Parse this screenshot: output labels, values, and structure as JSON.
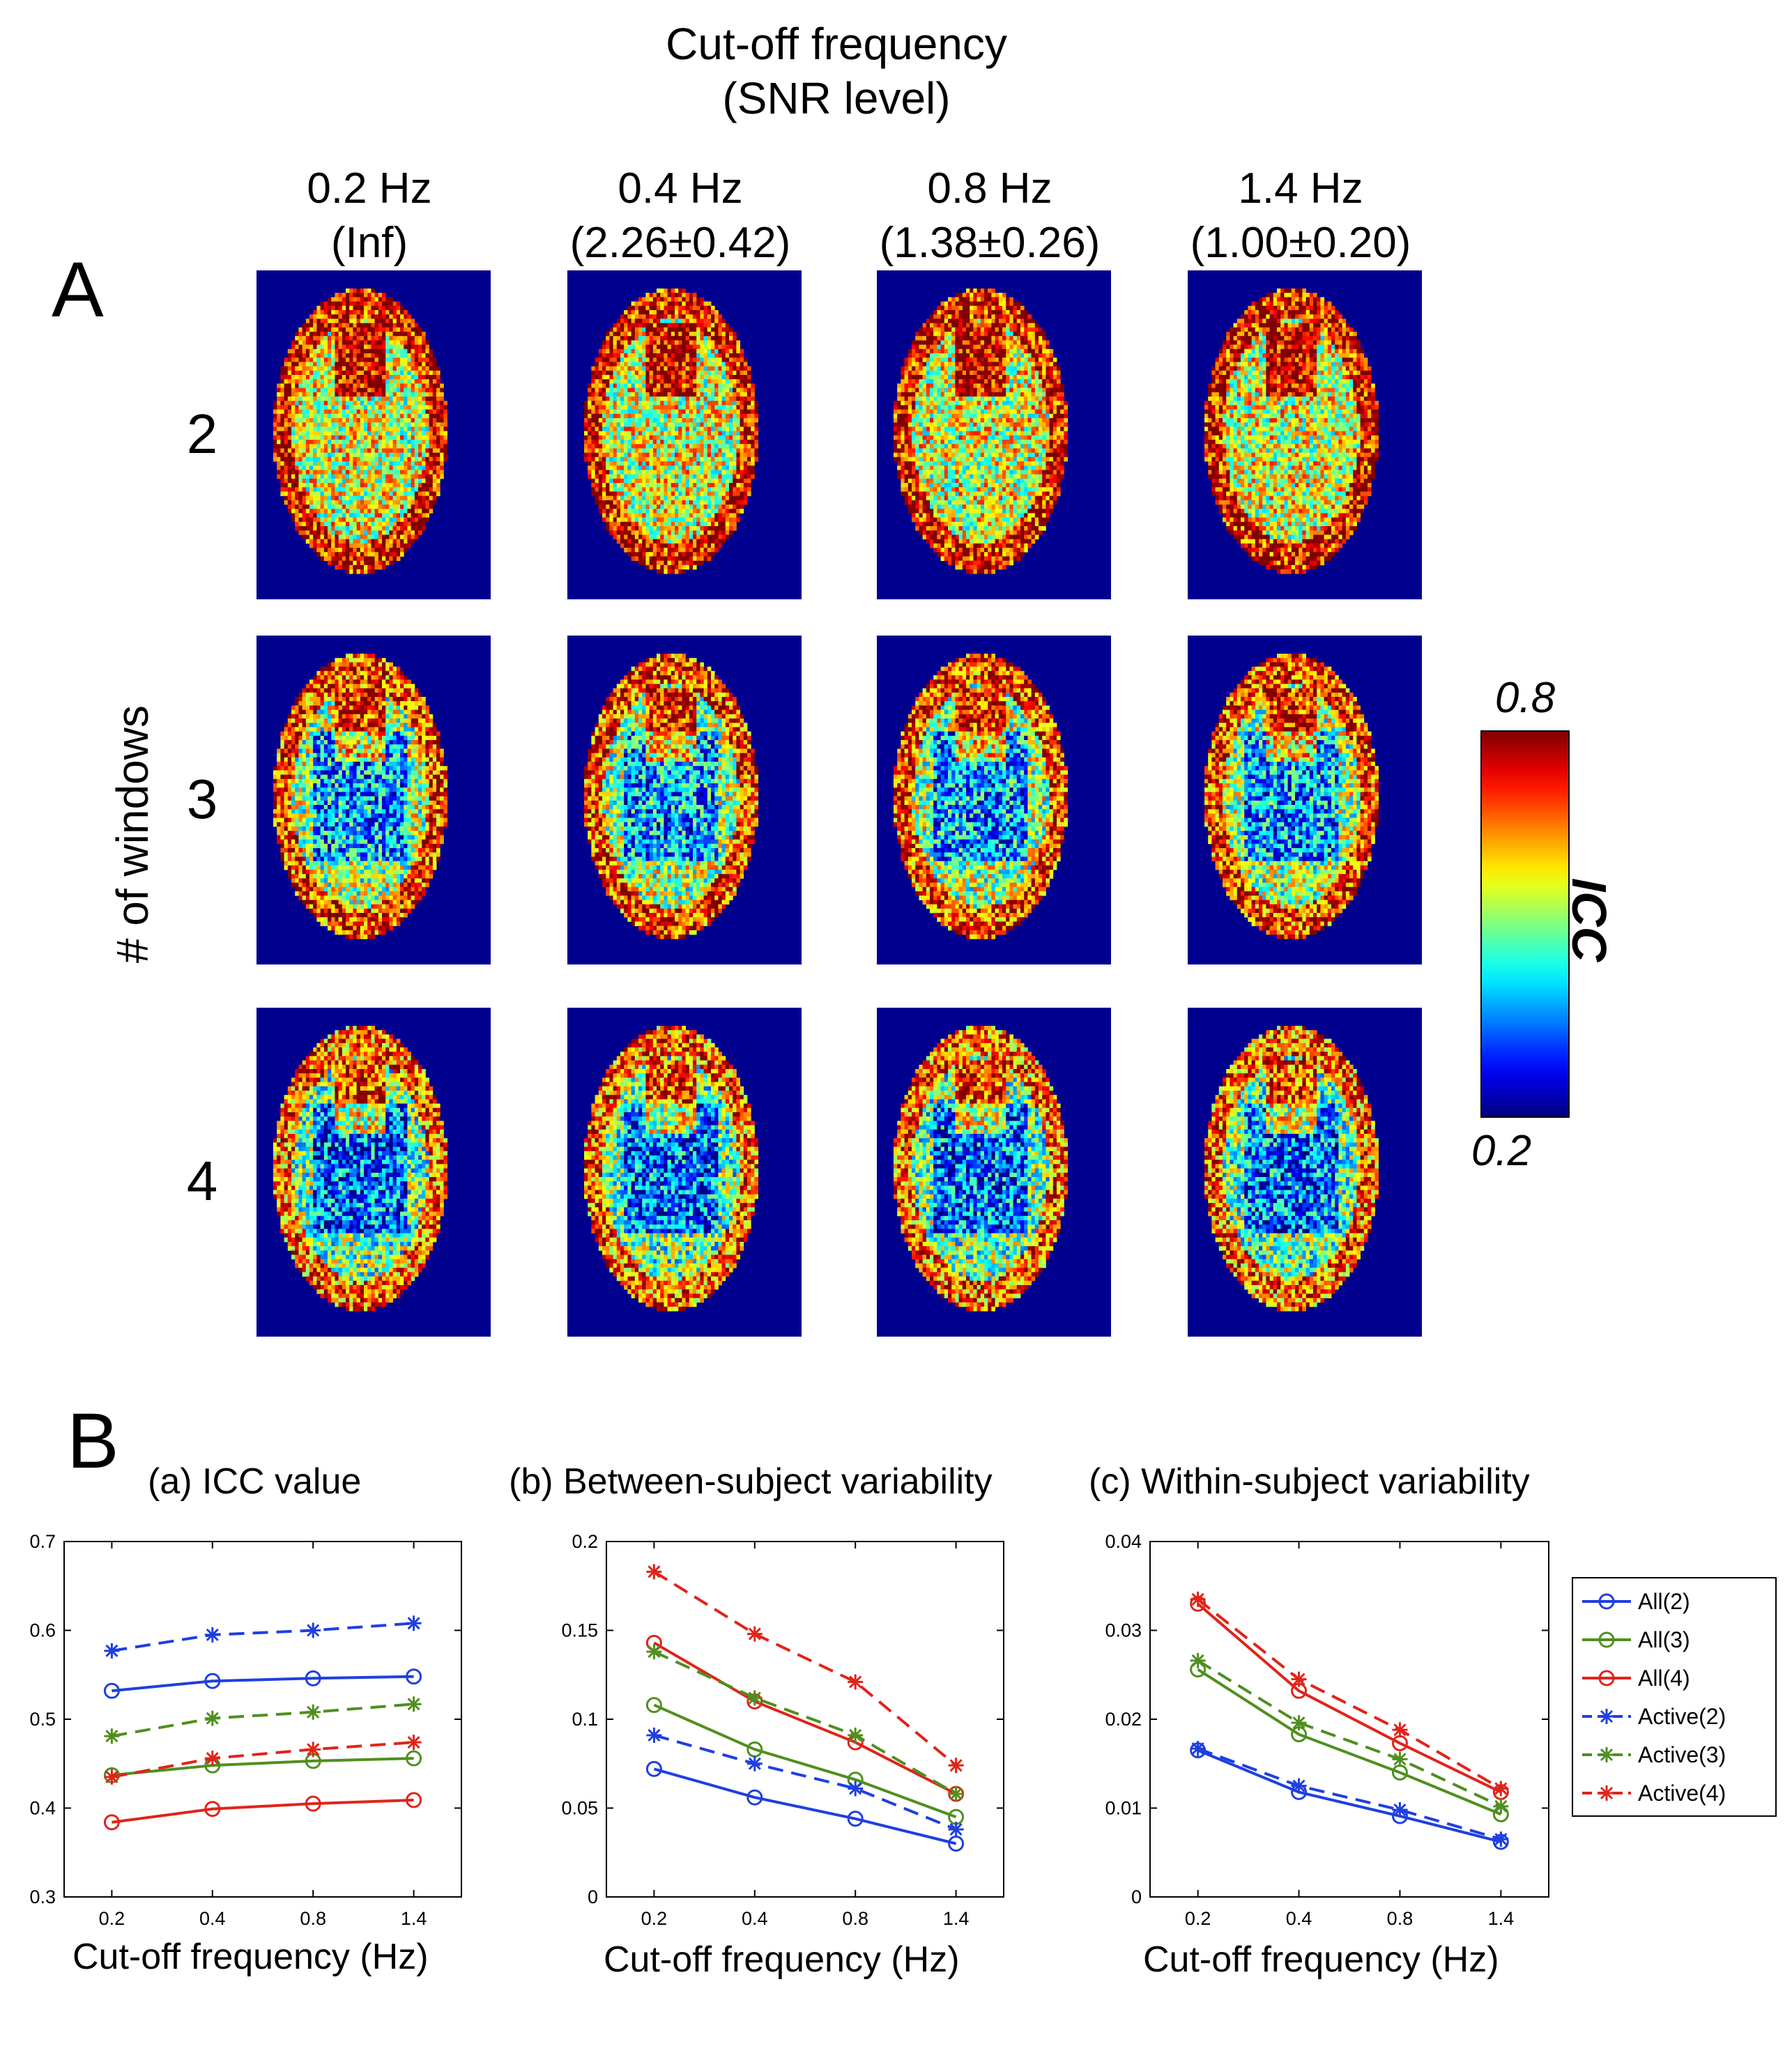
{
  "panel_a": {
    "letter": "A",
    "title_line1": "Cut-off frequency",
    "title_line2": "(SNR level)",
    "columns": [
      {
        "freq": "0.2 Hz",
        "snr": "(Inf)"
      },
      {
        "freq": "0.4 Hz",
        "snr": "(2.26±0.42)"
      },
      {
        "freq": "0.8 Hz",
        "snr": "(1.38±0.26)"
      },
      {
        "freq": "1.4 Hz",
        "snr": "(1.00±0.20)"
      }
    ],
    "rows": [
      "2",
      "3",
      "4"
    ],
    "row_axis_label": "# of windows",
    "colorbar": {
      "label": "ICC",
      "max": "0.8",
      "min": "0.2"
    }
  },
  "panel_b": {
    "letter": "B",
    "legend": [
      "All(2)",
      "All(3)",
      "All(4)",
      "Active(2)",
      "Active(3)",
      "Active(4)"
    ]
  },
  "colors": {
    "blue": "#1f3fe0",
    "green": "#4f8f1f",
    "red": "#e0241a",
    "map_background": "#00008f"
  },
  "chart_data": [
    {
      "type": "line",
      "title": "(a) ICC value",
      "xlabel": "Cut-off frequency (Hz)",
      "ylabel": "",
      "x": [
        0.2,
        0.4,
        0.8,
        1.4
      ],
      "ylim": [
        0.3,
        0.7
      ],
      "yticks": [
        "0.3",
        "0.4",
        "0.5",
        "0.6",
        "0.7"
      ],
      "grid": false,
      "series": [
        {
          "name": "All(2)",
          "values": [
            0.532,
            0.543,
            0.546,
            0.548
          ]
        },
        {
          "name": "All(3)",
          "values": [
            0.437,
            0.448,
            0.453,
            0.456
          ]
        },
        {
          "name": "All(4)",
          "values": [
            0.384,
            0.399,
            0.405,
            0.409
          ]
        },
        {
          "name": "Active(2)",
          "values": [
            0.577,
            0.595,
            0.6,
            0.608
          ]
        },
        {
          "name": "Active(3)",
          "values": [
            0.481,
            0.501,
            0.508,
            0.517
          ]
        },
        {
          "name": "Active(4)",
          "values": [
            0.435,
            0.456,
            0.466,
            0.474
          ]
        }
      ]
    },
    {
      "type": "line",
      "title": "(b) Between-subject variability",
      "xlabel": "Cut-off frequency (Hz)",
      "ylabel": "",
      "x": [
        0.2,
        0.4,
        0.8,
        1.4
      ],
      "ylim": [
        0,
        0.2
      ],
      "yticks": [
        "0",
        "0.05",
        "0.1",
        "0.15",
        "0.2"
      ],
      "grid": false,
      "series": [
        {
          "name": "All(2)",
          "values": [
            0.072,
            0.056,
            0.044,
            0.03
          ]
        },
        {
          "name": "All(3)",
          "values": [
            0.108,
            0.083,
            0.066,
            0.045
          ]
        },
        {
          "name": "All(4)",
          "values": [
            0.143,
            0.11,
            0.087,
            0.058
          ]
        },
        {
          "name": "Active(2)",
          "values": [
            0.091,
            0.075,
            0.061,
            0.038
          ]
        },
        {
          "name": "Active(3)",
          "values": [
            0.138,
            0.112,
            0.091,
            0.058
          ]
        },
        {
          "name": "Active(4)",
          "values": [
            0.183,
            0.148,
            0.121,
            0.074
          ]
        }
      ]
    },
    {
      "type": "line",
      "title": "(c) Within-subject variability",
      "xlabel": "Cut-off frequency (Hz)",
      "ylabel": "",
      "x": [
        0.2,
        0.4,
        0.8,
        1.4
      ],
      "ylim": [
        0,
        0.04
      ],
      "yticks": [
        "0",
        "0.01",
        "0.02",
        "0.03",
        "0.04"
      ],
      "grid": false,
      "series": [
        {
          "name": "All(2)",
          "values": [
            0.0165,
            0.0118,
            0.0091,
            0.0062
          ]
        },
        {
          "name": "All(3)",
          "values": [
            0.0256,
            0.0183,
            0.014,
            0.0093
          ]
        },
        {
          "name": "All(4)",
          "values": [
            0.033,
            0.0232,
            0.0173,
            0.0118
          ]
        },
        {
          "name": "Active(2)",
          "values": [
            0.0167,
            0.0125,
            0.0098,
            0.0065
          ]
        },
        {
          "name": "Active(3)",
          "values": [
            0.0266,
            0.0196,
            0.0155,
            0.0102
          ]
        },
        {
          "name": "Active(4)",
          "values": [
            0.0335,
            0.0245,
            0.0188,
            0.0122
          ]
        }
      ]
    }
  ]
}
